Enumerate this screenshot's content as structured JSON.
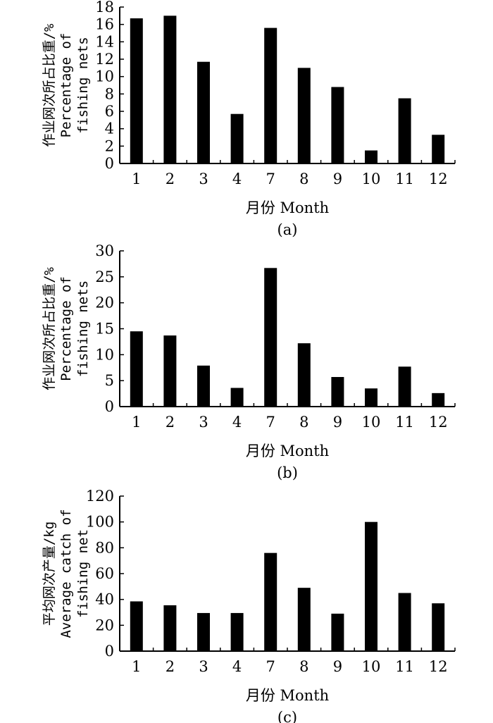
{
  "chart_data": [
    {
      "type": "bar",
      "panel_label": "(a)",
      "categories": [
        "1",
        "2",
        "3",
        "4",
        "7",
        "8",
        "9",
        "10",
        "11",
        "12"
      ],
      "values": [
        16.7,
        17.0,
        11.7,
        5.7,
        15.6,
        11.0,
        8.8,
        1.5,
        7.5,
        3.3
      ],
      "xlabel": "月份 Month",
      "ylabel_lines": [
        "作业网次所占比重/%",
        "Percentage of",
        "fishing nets"
      ],
      "ylim": [
        0,
        18
      ],
      "yticks": [
        0,
        2,
        4,
        6,
        8,
        10,
        12,
        14,
        16,
        18
      ],
      "bar_color": "#000000",
      "grid": false
    },
    {
      "type": "bar",
      "panel_label": "(b)",
      "categories": [
        "1",
        "2",
        "3",
        "4",
        "7",
        "8",
        "9",
        "10",
        "11",
        "12"
      ],
      "values": [
        14.5,
        13.7,
        7.9,
        3.6,
        26.7,
        12.2,
        5.7,
        3.5,
        7.7,
        2.6
      ],
      "xlabel": "月份 Month",
      "ylabel_lines": [
        "作业网次所占比重/%",
        "Percentage of",
        "fishing nets"
      ],
      "ylim": [
        0,
        30
      ],
      "yticks": [
        0,
        5,
        10,
        15,
        20,
        25,
        30
      ],
      "bar_color": "#000000",
      "grid": false
    },
    {
      "type": "bar",
      "panel_label": "(c)",
      "categories": [
        "1",
        "2",
        "3",
        "4",
        "7",
        "8",
        "9",
        "10",
        "11",
        "12"
      ],
      "values": [
        38.5,
        35.5,
        29.5,
        29.5,
        76.0,
        49.0,
        29.0,
        100.0,
        45.0,
        37.0
      ],
      "xlabel": "月份 Month",
      "ylabel_lines": [
        "平均网次产量/kg",
        "Average catch of",
        "fishing net"
      ],
      "ylim": [
        0,
        120
      ],
      "yticks": [
        0,
        20,
        40,
        60,
        80,
        100,
        120
      ],
      "bar_color": "#000000",
      "grid": false
    }
  ]
}
